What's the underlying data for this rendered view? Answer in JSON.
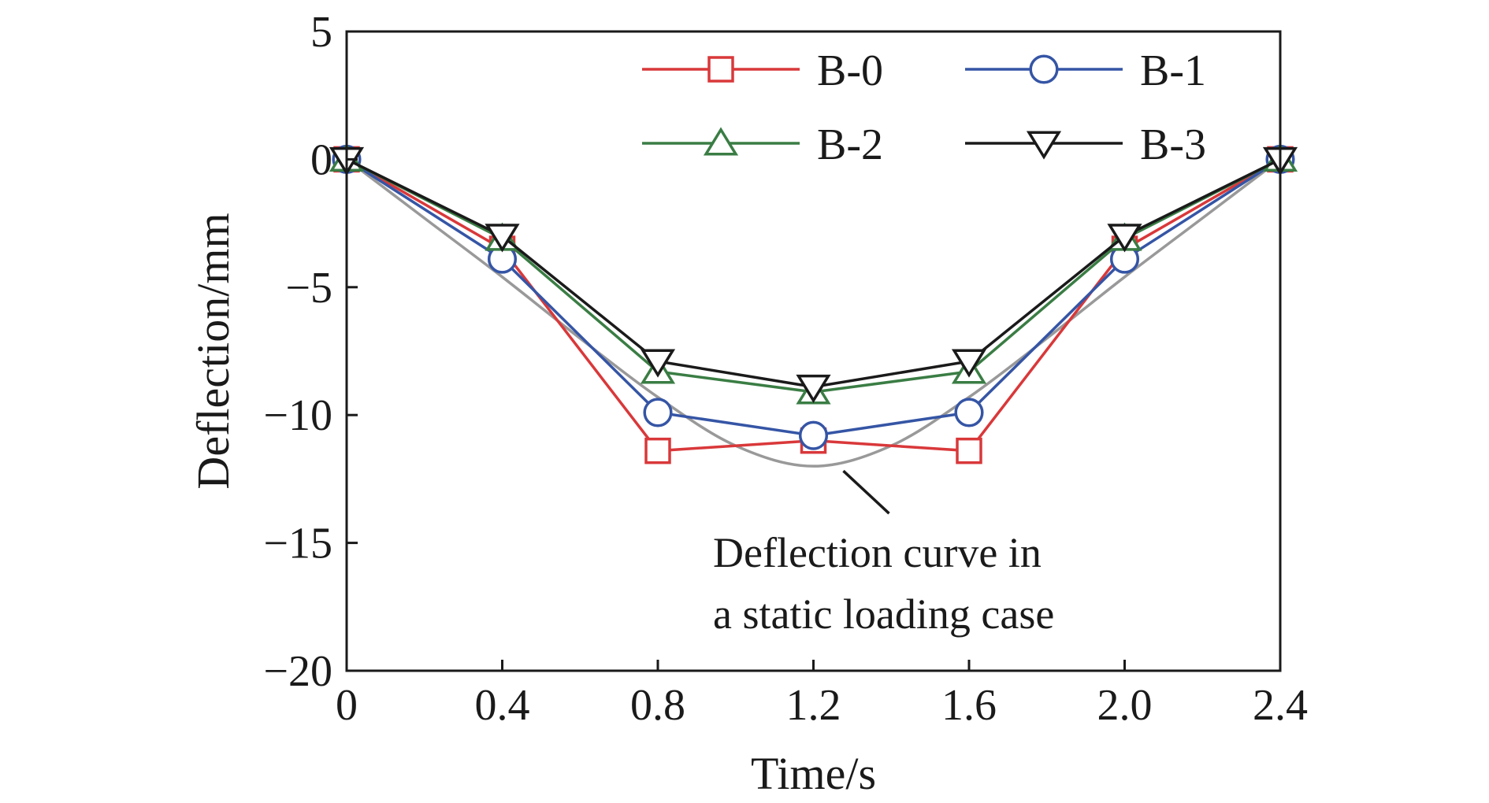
{
  "chart_data": {
    "type": "line",
    "xlabel": "Time/s",
    "ylabel": "Deflection/mm",
    "xlim": [
      0,
      2.4
    ],
    "ylim": [
      -20,
      5
    ],
    "x_ticks": [
      0,
      0.4,
      0.8,
      1.2,
      1.6,
      2.0,
      2.4
    ],
    "x_tick_labels": [
      "0",
      "0.4",
      "0.8",
      "1.2",
      "1.6",
      "2.0",
      "2.4"
    ],
    "y_ticks": [
      5,
      0,
      -5,
      -10,
      -15,
      -20
    ],
    "y_tick_labels": [
      "5",
      "0",
      "−5",
      "−10",
      "−15",
      "−20"
    ],
    "grid": false,
    "legend_position": "top-right",
    "x": [
      0,
      0.4,
      0.8,
      1.2,
      1.6,
      2.0,
      2.4
    ],
    "series": [
      {
        "name": "B-0",
        "color": "#d9383a",
        "marker": "square",
        "values": [
          0,
          -3.5,
          -11.4,
          -11.0,
          -11.4,
          -3.5,
          0
        ]
      },
      {
        "name": "B-1",
        "color": "#3555a5",
        "marker": "circle",
        "values": [
          0,
          -3.9,
          -9.9,
          -10.8,
          -9.9,
          -3.9,
          0
        ]
      },
      {
        "name": "B-2",
        "color": "#3a7d44",
        "marker": "triangle-up",
        "values": [
          0,
          -3.1,
          -8.3,
          -9.1,
          -8.3,
          -3.1,
          0
        ]
      },
      {
        "name": "B-3",
        "color": "#1a1a1a",
        "marker": "triangle-down",
        "values": [
          0,
          -3.0,
          -7.9,
          -8.9,
          -7.9,
          -3.0,
          0
        ]
      }
    ],
    "reference_curve": {
      "color": "#999999",
      "x": [
        0,
        0.2,
        0.4,
        0.6,
        0.8,
        1.0,
        1.2,
        1.4,
        1.6,
        1.8,
        2.0,
        2.2,
        2.4
      ],
      "values": [
        0,
        -2.3,
        -4.6,
        -7.0,
        -9.3,
        -11.2,
        -12.0,
        -11.2,
        -9.3,
        -7.0,
        -4.6,
        -2.3,
        0
      ]
    },
    "annotation": {
      "lines": [
        "Deflection curve in",
        "a static loading case"
      ],
      "points_to": {
        "x": 1.2,
        "y": -12.0
      }
    }
  }
}
